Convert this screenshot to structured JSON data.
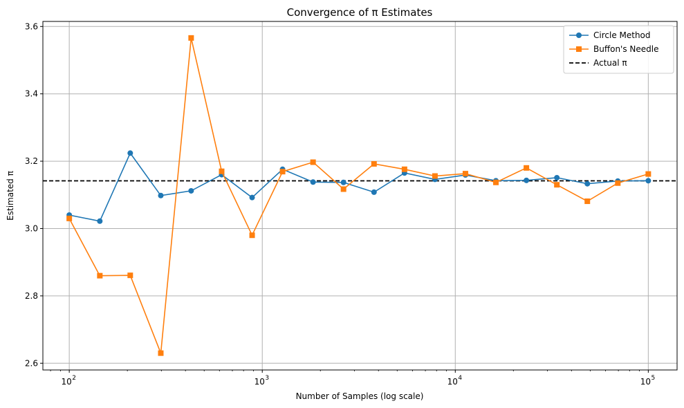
{
  "chart_data": {
    "type": "line",
    "title": "Convergence of π Estimates",
    "xlabel": "Number of Samples (log scale)",
    "ylabel": "Estimated π",
    "x_scale": "log",
    "xlim": [
      73,
      141000
    ],
    "ylim": [
      2.58,
      3.615
    ],
    "x_ticks": [
      {
        "value": 100,
        "base": "10",
        "exp": "2"
      },
      {
        "value": 1000,
        "base": "10",
        "exp": "3"
      },
      {
        "value": 10000,
        "base": "10",
        "exp": "4"
      },
      {
        "value": 100000,
        "base": "10",
        "exp": "5"
      }
    ],
    "y_ticks": [
      "2.6",
      "2.8",
      "3.0",
      "3.2",
      "3.4",
      "3.6"
    ],
    "grid": true,
    "legend_position": "top-right",
    "x": [
      100,
      144,
      207,
      298,
      428,
      616,
      886,
      1274,
      1833,
      2636,
      3793,
      5456,
      7848,
      11288,
      16238,
      23357,
      33598,
      48329,
      69519,
      100000
    ],
    "series": [
      {
        "name": "Circle Method",
        "color": "#1f77b4",
        "marker": "circle",
        "values": [
          3.04,
          3.022,
          3.224,
          3.098,
          3.112,
          3.16,
          3.092,
          3.176,
          3.138,
          3.137,
          3.108,
          3.165,
          3.146,
          3.159,
          3.142,
          3.143,
          3.151,
          3.133,
          3.141,
          3.142
        ]
      },
      {
        "name": "Buffon's Needle",
        "color": "#ff7f0e",
        "marker": "square",
        "values": [
          3.03,
          2.86,
          2.861,
          2.63,
          3.566,
          3.17,
          2.98,
          3.169,
          3.197,
          3.117,
          3.192,
          3.176,
          3.156,
          3.163,
          3.137,
          3.18,
          3.13,
          3.081,
          3.135,
          3.162
        ]
      }
    ],
    "reference_line": {
      "name": "Actual π",
      "value": 3.14159,
      "color": "#000000",
      "style": "dashed"
    }
  }
}
